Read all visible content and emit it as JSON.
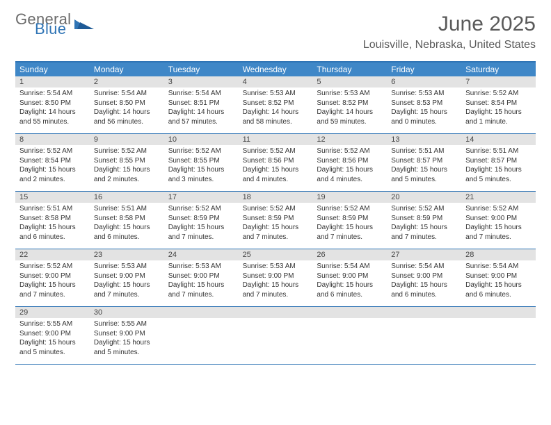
{
  "brand": {
    "part1": "General",
    "part2": "Blue"
  },
  "title": "June 2025",
  "location": "Louisville, Nebraska, United States",
  "weekdays": [
    "Sunday",
    "Monday",
    "Tuesday",
    "Wednesday",
    "Thursday",
    "Friday",
    "Saturday"
  ],
  "colors": {
    "header_blue": "#3f87c7",
    "border_blue": "#2f74b5",
    "daybar_gray": "#e3e3e3",
    "text": "#333333",
    "title_text": "#5a5a5a"
  },
  "weeks": [
    [
      {
        "n": "1",
        "sr": "5:54 AM",
        "ss": "8:50 PM",
        "dl": "14 hours and 55 minutes."
      },
      {
        "n": "2",
        "sr": "5:54 AM",
        "ss": "8:50 PM",
        "dl": "14 hours and 56 minutes."
      },
      {
        "n": "3",
        "sr": "5:54 AM",
        "ss": "8:51 PM",
        "dl": "14 hours and 57 minutes."
      },
      {
        "n": "4",
        "sr": "5:53 AM",
        "ss": "8:52 PM",
        "dl": "14 hours and 58 minutes."
      },
      {
        "n": "5",
        "sr": "5:53 AM",
        "ss": "8:52 PM",
        "dl": "14 hours and 59 minutes."
      },
      {
        "n": "6",
        "sr": "5:53 AM",
        "ss": "8:53 PM",
        "dl": "15 hours and 0 minutes."
      },
      {
        "n": "7",
        "sr": "5:52 AM",
        "ss": "8:54 PM",
        "dl": "15 hours and 1 minute."
      }
    ],
    [
      {
        "n": "8",
        "sr": "5:52 AM",
        "ss": "8:54 PM",
        "dl": "15 hours and 2 minutes."
      },
      {
        "n": "9",
        "sr": "5:52 AM",
        "ss": "8:55 PM",
        "dl": "15 hours and 2 minutes."
      },
      {
        "n": "10",
        "sr": "5:52 AM",
        "ss": "8:55 PM",
        "dl": "15 hours and 3 minutes."
      },
      {
        "n": "11",
        "sr": "5:52 AM",
        "ss": "8:56 PM",
        "dl": "15 hours and 4 minutes."
      },
      {
        "n": "12",
        "sr": "5:52 AM",
        "ss": "8:56 PM",
        "dl": "15 hours and 4 minutes."
      },
      {
        "n": "13",
        "sr": "5:51 AM",
        "ss": "8:57 PM",
        "dl": "15 hours and 5 minutes."
      },
      {
        "n": "14",
        "sr": "5:51 AM",
        "ss": "8:57 PM",
        "dl": "15 hours and 5 minutes."
      }
    ],
    [
      {
        "n": "15",
        "sr": "5:51 AM",
        "ss": "8:58 PM",
        "dl": "15 hours and 6 minutes."
      },
      {
        "n": "16",
        "sr": "5:51 AM",
        "ss": "8:58 PM",
        "dl": "15 hours and 6 minutes."
      },
      {
        "n": "17",
        "sr": "5:52 AM",
        "ss": "8:59 PM",
        "dl": "15 hours and 7 minutes."
      },
      {
        "n": "18",
        "sr": "5:52 AM",
        "ss": "8:59 PM",
        "dl": "15 hours and 7 minutes."
      },
      {
        "n": "19",
        "sr": "5:52 AM",
        "ss": "8:59 PM",
        "dl": "15 hours and 7 minutes."
      },
      {
        "n": "20",
        "sr": "5:52 AM",
        "ss": "8:59 PM",
        "dl": "15 hours and 7 minutes."
      },
      {
        "n": "21",
        "sr": "5:52 AM",
        "ss": "9:00 PM",
        "dl": "15 hours and 7 minutes."
      }
    ],
    [
      {
        "n": "22",
        "sr": "5:52 AM",
        "ss": "9:00 PM",
        "dl": "15 hours and 7 minutes."
      },
      {
        "n": "23",
        "sr": "5:53 AM",
        "ss": "9:00 PM",
        "dl": "15 hours and 7 minutes."
      },
      {
        "n": "24",
        "sr": "5:53 AM",
        "ss": "9:00 PM",
        "dl": "15 hours and 7 minutes."
      },
      {
        "n": "25",
        "sr": "5:53 AM",
        "ss": "9:00 PM",
        "dl": "15 hours and 7 minutes."
      },
      {
        "n": "26",
        "sr": "5:54 AM",
        "ss": "9:00 PM",
        "dl": "15 hours and 6 minutes."
      },
      {
        "n": "27",
        "sr": "5:54 AM",
        "ss": "9:00 PM",
        "dl": "15 hours and 6 minutes."
      },
      {
        "n": "28",
        "sr": "5:54 AM",
        "ss": "9:00 PM",
        "dl": "15 hours and 6 minutes."
      }
    ],
    [
      {
        "n": "29",
        "sr": "5:55 AM",
        "ss": "9:00 PM",
        "dl": "15 hours and 5 minutes."
      },
      {
        "n": "30",
        "sr": "5:55 AM",
        "ss": "9:00 PM",
        "dl": "15 hours and 5 minutes."
      },
      null,
      null,
      null,
      null,
      null
    ]
  ],
  "labels": {
    "sunrise": "Sunrise:",
    "sunset": "Sunset:",
    "daylight": "Daylight:"
  }
}
